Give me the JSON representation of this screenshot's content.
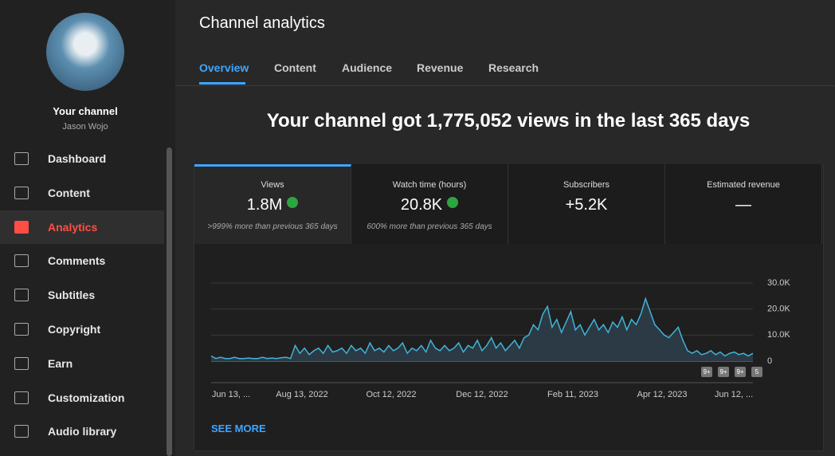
{
  "sidebar": {
    "channel_label": "Your channel",
    "channel_name": "Jason Wojo",
    "items": [
      "Dashboard",
      "Content",
      "Analytics",
      "Comments",
      "Subtitles",
      "Copyright",
      "Earn",
      "Customization",
      "Audio library"
    ]
  },
  "header": {
    "title": "Channel analytics",
    "tabs": [
      "Overview",
      "Content",
      "Audience",
      "Revenue",
      "Research"
    ]
  },
  "headline": "Your channel got 1,775,052 views in the last 365 days",
  "cards": [
    {
      "label": "Views",
      "value": "1.8M",
      "note": ">999% more than previous 365 days"
    },
    {
      "label": "Watch time (hours)",
      "value": "20.8K",
      "note": "600% more than previous 365 days"
    },
    {
      "label": "Subscribers",
      "value": "+5.2K"
    },
    {
      "label": "Estimated revenue",
      "value": "—"
    }
  ],
  "chart_data": {
    "type": "line",
    "color": "#41b4d9",
    "values": [
      2000,
      1000,
      1500,
      1000,
      1000,
      1500,
      1000,
      1000,
      1200,
      1000,
      1000,
      1500,
      1000,
      1200,
      1000,
      1300,
      1500,
      1000,
      6000,
      3000,
      5000,
      2500,
      4000,
      5000,
      3000,
      6000,
      3500,
      4000,
      5000,
      3000,
      6000,
      4000,
      5000,
      3000,
      7000,
      4000,
      5000,
      3500,
      6000,
      4000,
      5000,
      7000,
      3000,
      5000,
      4000,
      6000,
      3500,
      8000,
      5000,
      4000,
      6000,
      4000,
      5000,
      7000,
      3500,
      6000,
      5000,
      8000,
      4000,
      6000,
      9000,
      5000,
      7000,
      4000,
      6000,
      8000,
      5000,
      9000,
      10000,
      14000,
      12000,
      18000,
      21000,
      13000,
      16000,
      11000,
      15000,
      19000,
      12000,
      14000,
      10000,
      13000,
      16000,
      12000,
      14000,
      11000,
      15000,
      13000,
      17000,
      12000,
      16000,
      14000,
      18000,
      24000,
      19000,
      14000,
      12000,
      10000,
      9000,
      11000,
      13000,
      8000,
      4000,
      3000,
      4000,
      2500,
      3000,
      4000,
      2500,
      3500,
      2000,
      3000,
      3500,
      2500,
      3000,
      2000,
      3000
    ],
    "ylim": [
      0,
      30000
    ],
    "yticks": [
      0,
      {
        "value": 10000,
        "label": "10.0K"
      },
      {
        "value": 20000,
        "label": "20.0K"
      },
      {
        "value": 30000,
        "label": "30.0K"
      }
    ],
    "grid": true,
    "xtick_labels": [
      "Jun 13, ...",
      "Aug 13, 2022",
      "Oct 12, 2022",
      "Dec 12, 2022",
      "Feb 11, 2023",
      "Apr 12, 2023",
      "Jun 12, ..."
    ],
    "badges": [
      "9+",
      "9+",
      "9+",
      "5"
    ]
  },
  "see_more": "SEE MORE"
}
